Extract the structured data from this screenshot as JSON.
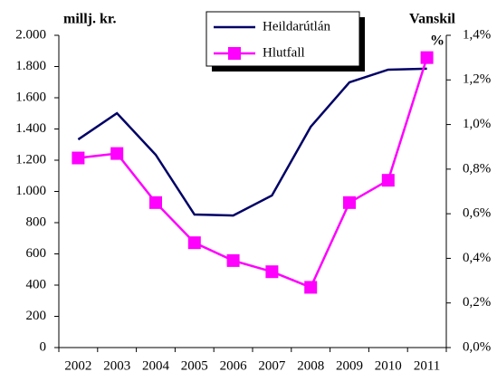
{
  "chart_data": {
    "type": "line",
    "y_label": "millj. kr.",
    "y2_label": [
      "Vanskil",
      "%"
    ],
    "categories": [
      "2002",
      "2003",
      "2004",
      "2005",
      "2006",
      "2007",
      "2008",
      "2009",
      "2010",
      "2011"
    ],
    "series": [
      {
        "name": "Heildarútlán",
        "color": "#000066",
        "values": [
          1333,
          1501,
          1235,
          852,
          846,
          974,
          1414,
          1699,
          1780,
          1786
        ]
      },
      {
        "name": "Hlutfall",
        "color": "#ff00ff",
        "axis": "y2",
        "marker": "square",
        "values": [
          0.85,
          0.87,
          0.65,
          0.47,
          0.39,
          0.34,
          0.27,
          0.65,
          0.75,
          1.3
        ]
      }
    ],
    "ylim": [
      0,
      2000
    ],
    "yticks": [
      0,
      200,
      400,
      600,
      800,
      {
        "value": 1000,
        "label": "1.000"
      },
      {
        "value": 1200,
        "label": "1.200"
      },
      {
        "value": 1400,
        "label": "1.400"
      },
      {
        "value": 1600,
        "label": "1.600"
      },
      {
        "value": 1800,
        "label": "1.800"
      },
      {
        "value": 2000,
        "label": "2.000"
      }
    ],
    "y2lim": [
      0,
      1.4
    ],
    "y2ticks": [
      {
        "value": 0,
        "label": "0,0%"
      },
      {
        "value": 0.2,
        "label": "0,2%"
      },
      {
        "value": 0.4,
        "label": "0,4%"
      },
      {
        "value": 0.6,
        "label": "0,6%"
      },
      {
        "value": 0.8,
        "label": "0,8%"
      },
      {
        "value": 1.0,
        "label": "1,0%"
      },
      {
        "value": 1.2,
        "label": "1,2%"
      },
      {
        "value": 1.4,
        "label": "1,4%"
      }
    ],
    "grid": false,
    "legend": "top"
  }
}
